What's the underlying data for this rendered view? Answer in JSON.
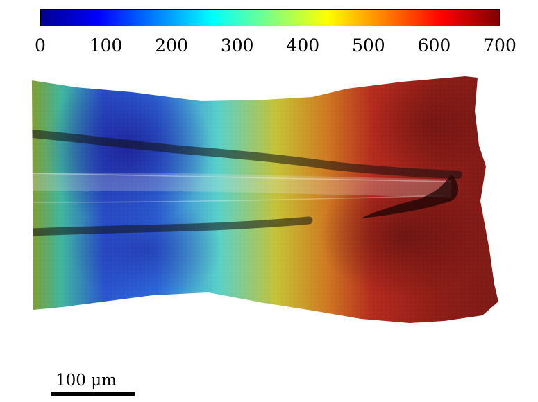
{
  "colorbar": {
    "min": 0,
    "max": 700,
    "colormap": "jet",
    "ticks": [
      "0",
      "100",
      "200",
      "300",
      "400",
      "500",
      "600",
      "700"
    ]
  },
  "scale_bar": {
    "label": "100 μm"
  },
  "colors": {
    "jet": [
      "#00008f",
      "#0000ff",
      "#0080ff",
      "#00ffff",
      "#80ff80",
      "#ffff00",
      "#ff8000",
      "#ff0000",
      "#800000"
    ]
  }
}
